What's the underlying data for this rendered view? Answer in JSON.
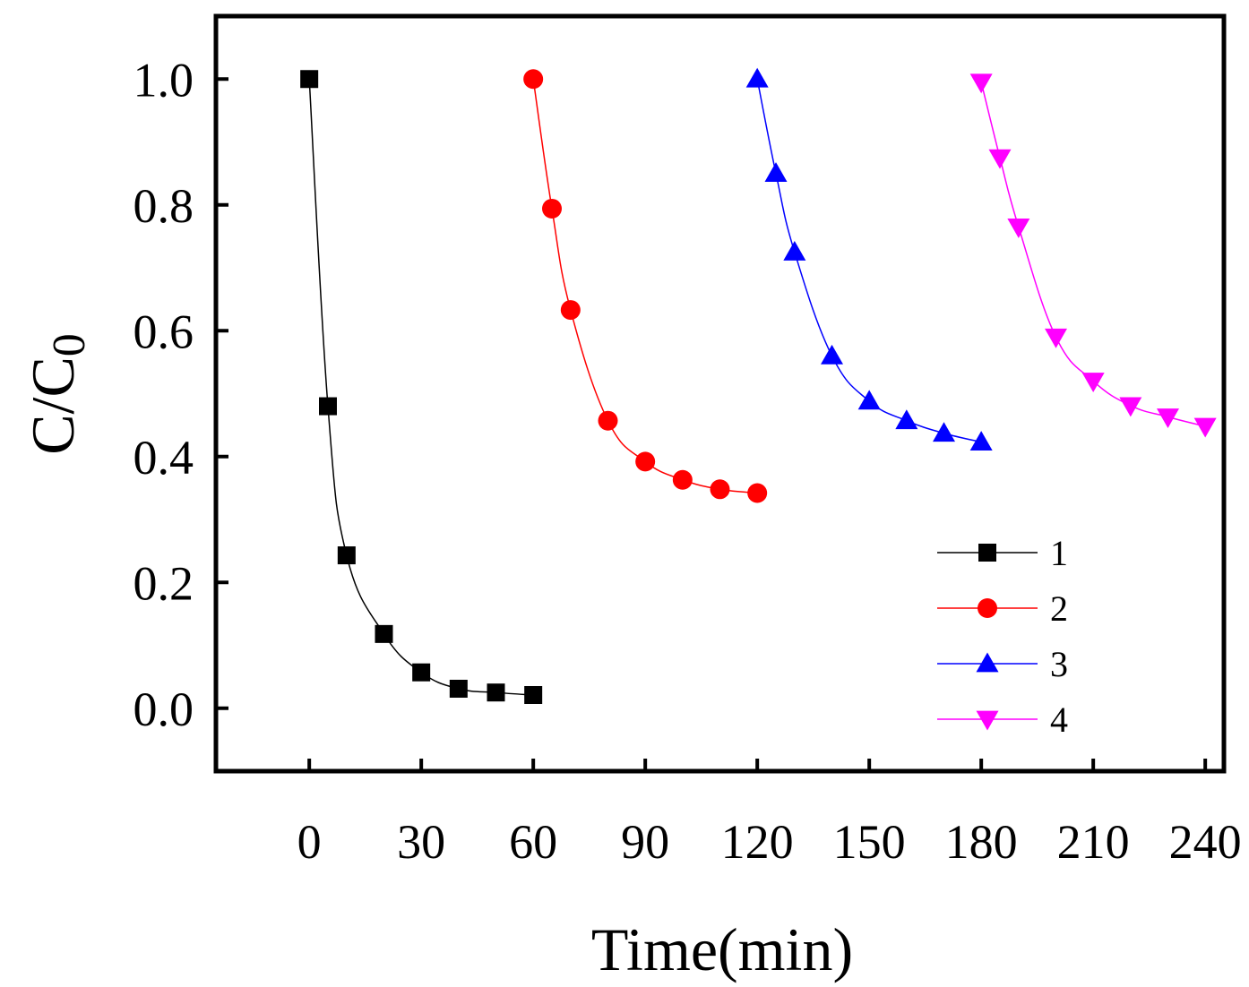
{
  "chart_data": {
    "type": "line",
    "title": "",
    "xlabel": "Time(min)",
    "ylabel": "C/C",
    "ylabel_subscript": "0",
    "xlim": [
      -25,
      245
    ],
    "ylim": [
      -0.1,
      1.1
    ],
    "x_ticks": [
      0,
      30,
      60,
      90,
      120,
      150,
      180,
      210,
      240
    ],
    "y_ticks": [
      0.0,
      0.2,
      0.4,
      0.6,
      0.8,
      1.0
    ],
    "x_tick_labels": [
      "0",
      "30",
      "60",
      "90",
      "120",
      "150",
      "180",
      "210",
      "240"
    ],
    "y_tick_labels": [
      "0.0",
      "0.2",
      "0.4",
      "0.6",
      "0.8",
      "1.0"
    ],
    "legend_position": "lower-right",
    "series": [
      {
        "name": "1",
        "color": "#000000",
        "marker": "square",
        "x": [
          0,
          5,
          10,
          20,
          30,
          40,
          50,
          60
        ],
        "y": [
          1.0,
          0.48,
          0.243,
          0.118,
          0.057,
          0.031,
          0.025,
          0.021
        ]
      },
      {
        "name": "2",
        "color": "#ff0000",
        "marker": "circle",
        "x": [
          60,
          65,
          70,
          80,
          90,
          100,
          110,
          120
        ],
        "y": [
          1.0,
          0.794,
          0.633,
          0.457,
          0.392,
          0.363,
          0.348,
          0.342
        ]
      },
      {
        "name": "3",
        "color": "#0000ff",
        "marker": "triangle-up",
        "x": [
          120,
          125,
          130,
          140,
          150,
          160,
          170,
          180
        ],
        "y": [
          1.0,
          0.85,
          0.725,
          0.56,
          0.488,
          0.457,
          0.437,
          0.423
        ]
      },
      {
        "name": "4",
        "color": "#ff00ff",
        "marker": "triangle-down",
        "x": [
          180,
          185,
          190,
          200,
          210,
          220,
          230,
          240
        ],
        "y": [
          0.995,
          0.875,
          0.765,
          0.59,
          0.52,
          0.481,
          0.463,
          0.448
        ]
      }
    ]
  }
}
